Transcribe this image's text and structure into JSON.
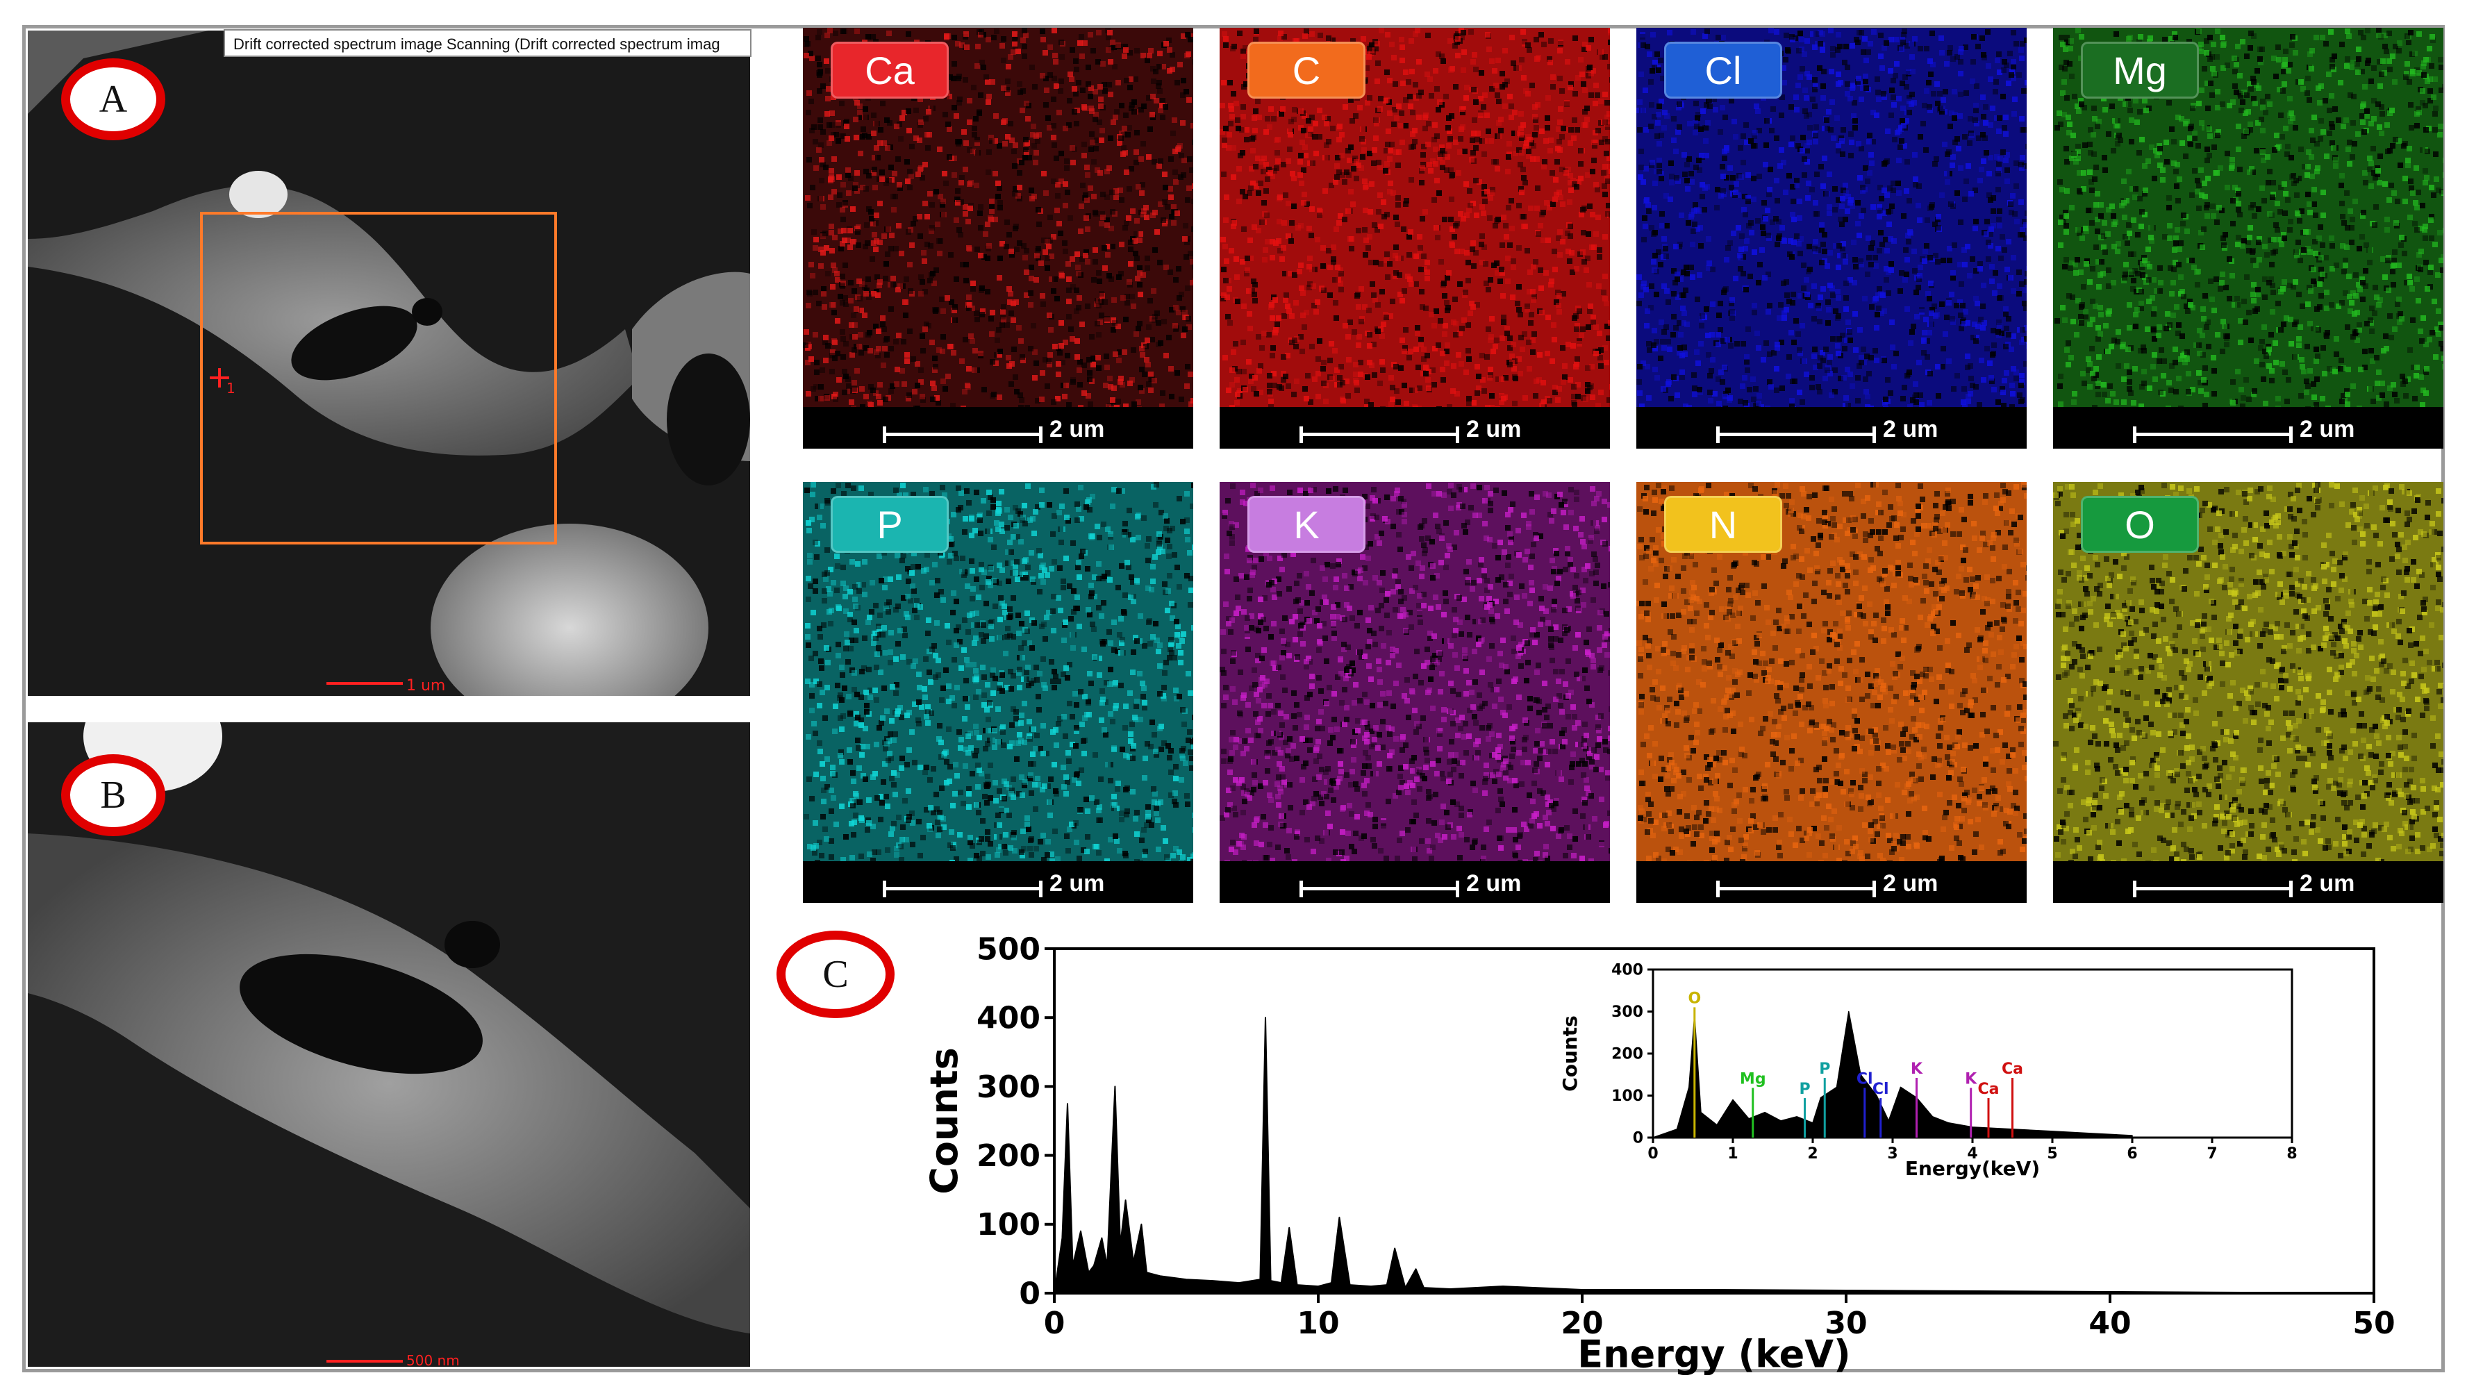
{
  "panel_a": {
    "label": "A",
    "title_bar": "Drift corrected spectrum image Scanning (Drift corrected spectrum imag",
    "scale_text": "1 um",
    "marker": "1"
  },
  "panel_b": {
    "label": "B",
    "scale_text": "500 nm"
  },
  "panel_c_label": "C",
  "maps": [
    {
      "element": "Ca",
      "badge_color": "#e8262b",
      "map_color": "#e01818",
      "scale": "2 um"
    },
    {
      "element": "C",
      "badge_color": "#f26b1d",
      "map_color": "#e41010",
      "scale": "2 um"
    },
    {
      "element": "Cl",
      "badge_color": "#1f5fd6",
      "map_color": "#1010e0",
      "scale": "2 um"
    },
    {
      "element": "Mg",
      "badge_color": "#1b6e22",
      "map_color": "#22b81f",
      "scale": "2 um"
    },
    {
      "element": "P",
      "badge_color": "#1bb5b0",
      "map_color": "#10d6d6",
      "scale": "2 um"
    },
    {
      "element": "K",
      "badge_color": "#c77de0",
      "map_color": "#c91ec9",
      "scale": "2 um"
    },
    {
      "element": "N",
      "badge_color": "#f2c21d",
      "map_color": "#e8650f",
      "scale": "2 um"
    },
    {
      "element": "O",
      "badge_color": "#169a3e",
      "map_color": "#c8c81a",
      "scale": "2 um"
    }
  ],
  "chart_data": [
    {
      "type": "line",
      "xlabel": "Energy (keV)",
      "ylabel": "Counts",
      "xlim": [
        0,
        50
      ],
      "ylim": [
        0,
        500
      ],
      "xticks": [
        0,
        10,
        20,
        30,
        40,
        50
      ],
      "yticks": [
        0,
        100,
        200,
        300,
        400,
        500
      ],
      "series": [
        {
          "x": [
            0.0,
            0.3,
            0.5,
            0.7,
            1.0,
            1.3,
            1.5,
            1.8,
            2.0,
            2.3,
            2.5,
            2.7,
            3.0,
            3.3,
            3.5,
            4.0,
            5.0,
            6.0,
            7.0,
            7.8,
            8.0,
            8.2,
            8.6,
            8.9,
            9.2,
            10.0,
            10.5,
            10.8,
            11.2,
            12.0,
            12.6,
            12.9,
            13.3,
            13.7,
            14.0,
            15.0,
            17.0,
            20.0,
            25.0,
            30.0,
            35.0,
            40.0,
            45.0,
            50.0
          ],
          "y": [
            0,
            80,
            275,
            40,
            90,
            30,
            40,
            80,
            40,
            300,
            70,
            135,
            45,
            100,
            30,
            25,
            20,
            18,
            15,
            20,
            400,
            18,
            15,
            95,
            12,
            10,
            15,
            110,
            12,
            10,
            12,
            65,
            8,
            35,
            8,
            6,
            10,
            5,
            5,
            4,
            3,
            2,
            1,
            0
          ]
        }
      ]
    },
    {
      "type": "line",
      "xlabel": "Energy(keV)",
      "ylabel": "Counts",
      "xlim": [
        0,
        8
      ],
      "ylim": [
        0,
        400
      ],
      "xticks": [
        0,
        1,
        2,
        3,
        4,
        5,
        6,
        7,
        8
      ],
      "yticks": [
        0,
        100,
        200,
        300,
        400
      ],
      "series": [
        {
          "x": [
            0.0,
            0.3,
            0.45,
            0.52,
            0.6,
            0.8,
            1.0,
            1.2,
            1.4,
            1.6,
            1.8,
            2.0,
            2.1,
            2.3,
            2.45,
            2.6,
            2.8,
            2.95,
            3.1,
            3.3,
            3.5,
            3.7,
            4.0,
            4.5,
            5.0,
            5.5,
            6.0
          ],
          "y": [
            0,
            20,
            120,
            290,
            60,
            30,
            90,
            45,
            60,
            40,
            50,
            35,
            95,
            120,
            300,
            150,
            100,
            40,
            120,
            95,
            50,
            35,
            25,
            20,
            15,
            10,
            5
          ]
        }
      ],
      "peak_labels": [
        {
          "text": "O",
          "x": 0.52,
          "color": "#c8b400"
        },
        {
          "text": "Mg",
          "x": 1.25,
          "color": "#20c020"
        },
        {
          "text": "P",
          "x": 1.9,
          "color": "#10a0a0"
        },
        {
          "text": "P",
          "x": 2.15,
          "color": "#10a0a0"
        },
        {
          "text": "Cl",
          "x": 2.65,
          "color": "#2020d0"
        },
        {
          "text": "Cl",
          "x": 2.85,
          "color": "#2020d0"
        },
        {
          "text": "K",
          "x": 3.3,
          "color": "#b020b0"
        },
        {
          "text": "K",
          "x": 3.98,
          "color": "#b020b0"
        },
        {
          "text": "Ca",
          "x": 4.2,
          "color": "#d01010"
        },
        {
          "text": "Ca",
          "x": 4.5,
          "color": "#d01010"
        }
      ]
    }
  ]
}
